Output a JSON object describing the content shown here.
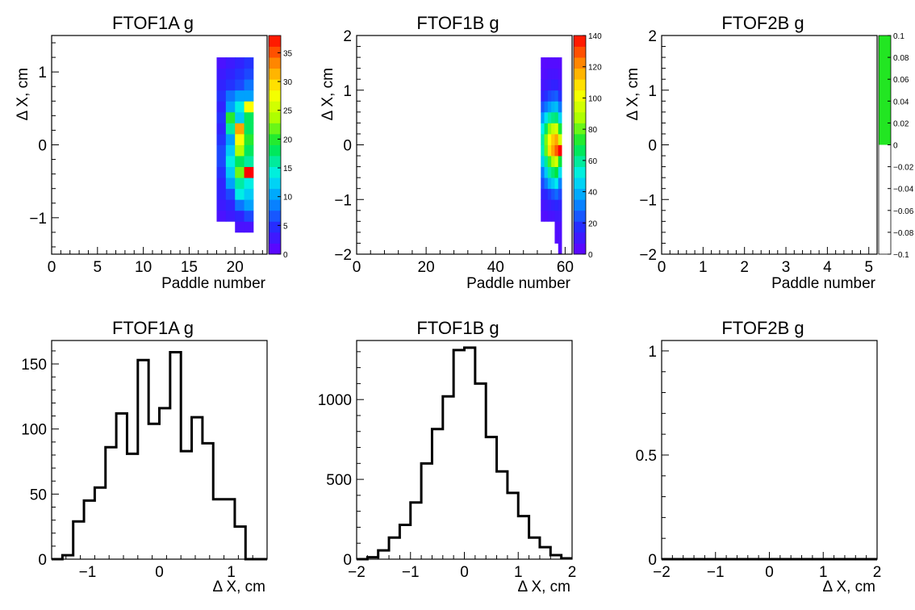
{
  "chart_data": [
    {
      "id": "p1",
      "type": "heatmap",
      "title": "FTOF1A g",
      "xlabel": "Paddle number",
      "ylabel": "Δ X, cm",
      "xlim": [
        0,
        23.5
      ],
      "ylim": [
        -1.5,
        1.5
      ],
      "xticks": [
        {
          "v": 0,
          "t": "0"
        },
        {
          "v": 5,
          "t": "5"
        },
        {
          "v": 10,
          "t": "10"
        },
        {
          "v": 15,
          "t": "15"
        },
        {
          "v": 20,
          "t": "20"
        }
      ],
      "yticks": [
        {
          "v": -1,
          "t": "−1"
        },
        {
          "v": 0,
          "t": "0"
        },
        {
          "v": 1,
          "t": "1"
        }
      ],
      "zlim": [
        0,
        38
      ],
      "zticks": [
        {
          "v": 0,
          "t": "0"
        },
        {
          "v": 5,
          "t": "5"
        },
        {
          "v": 10,
          "t": "10"
        },
        {
          "v": 15,
          "t": "15"
        },
        {
          "v": 20,
          "t": "20"
        },
        {
          "v": 25,
          "t": "25"
        },
        {
          "v": 30,
          "t": "30"
        },
        {
          "v": 35,
          "t": "35"
        }
      ],
      "cells": {
        "x_start": 18,
        "x_width": 1,
        "y_start": -1.2,
        "y_height": 0.15,
        "rows": [
          [
            null,
            null,
            2,
            2
          ],
          [
            2,
            3,
            4,
            6
          ],
          [
            3,
            4,
            8,
            10
          ],
          [
            4,
            6,
            14,
            12
          ],
          [
            4,
            10,
            16,
            14
          ],
          [
            5,
            12,
            22,
            38
          ],
          [
            6,
            14,
            18,
            16
          ],
          [
            6,
            12,
            24,
            18
          ],
          [
            5,
            10,
            28,
            20
          ],
          [
            4,
            16,
            32,
            18
          ],
          [
            5,
            20,
            12,
            18
          ],
          [
            4,
            10,
            14,
            28
          ],
          [
            5,
            8,
            10,
            10
          ],
          [
            4,
            5,
            6,
            8
          ],
          [
            3,
            4,
            5,
            6
          ],
          [
            2,
            3,
            4,
            5
          ]
        ]
      }
    },
    {
      "id": "p2",
      "type": "heatmap",
      "title": "FTOF1B g",
      "xlabel": "Paddle number",
      "ylabel": "Δ X, cm",
      "xlim": [
        0,
        62
      ],
      "ylim": [
        -2,
        2
      ],
      "xticks": [
        {
          "v": 0,
          "t": "0"
        },
        {
          "v": 20,
          "t": "20"
        },
        {
          "v": 40,
          "t": "40"
        },
        {
          "v": 60,
          "t": "60"
        }
      ],
      "yticks": [
        {
          "v": -2,
          "t": "−2"
        },
        {
          "v": -1,
          "t": "−1"
        },
        {
          "v": 0,
          "t": "0"
        },
        {
          "v": 1,
          "t": "1"
        },
        {
          "v": 2,
          "t": "2"
        }
      ],
      "zlim": [
        0,
        140
      ],
      "zticks": [
        {
          "v": 0,
          "t": "0"
        },
        {
          "v": 20,
          "t": "20"
        },
        {
          "v": 40,
          "t": "40"
        },
        {
          "v": 60,
          "t": "60"
        },
        {
          "v": 80,
          "t": "80"
        },
        {
          "v": 100,
          "t": "100"
        },
        {
          "v": 120,
          "t": "120"
        },
        {
          "v": 140,
          "t": "140"
        }
      ],
      "cells": {
        "x_start": 53,
        "x_width": 1,
        "y_start": -2,
        "y_height": 0.2,
        "rows": [
          [
            null,
            null,
            null,
            null,
            null,
            5
          ],
          [
            null,
            null,
            null,
            null,
            5,
            6
          ],
          [
            null,
            null,
            null,
            null,
            6,
            6
          ],
          [
            6,
            6,
            8,
            8,
            10,
            10
          ],
          [
            8,
            10,
            12,
            14,
            16,
            14
          ],
          [
            14,
            16,
            20,
            24,
            28,
            22
          ],
          [
            22,
            30,
            40,
            44,
            50,
            32
          ],
          [
            30,
            44,
            58,
            64,
            70,
            48
          ],
          [
            44,
            60,
            76,
            88,
            96,
            70
          ],
          [
            56,
            80,
            108,
            118,
            128,
            140
          ],
          [
            58,
            82,
            104,
            112,
            118,
            96
          ],
          [
            50,
            66,
            84,
            92,
            96,
            72
          ],
          [
            36,
            48,
            58,
            62,
            64,
            46
          ],
          [
            24,
            30,
            36,
            40,
            42,
            30
          ],
          [
            14,
            18,
            22,
            24,
            26,
            18
          ],
          [
            8,
            10,
            12,
            14,
            14,
            10
          ],
          [
            5,
            6,
            8,
            8,
            8,
            6
          ],
          [
            4,
            4,
            5,
            5,
            5,
            4
          ]
        ]
      }
    },
    {
      "id": "p3",
      "type": "heatmap",
      "title": "FTOF2B g",
      "xlabel": "Paddle number",
      "ylabel": "Δ X, cm",
      "xlim": [
        0,
        5.2
      ],
      "ylim": [
        -2,
        2
      ],
      "xticks": [
        {
          "v": 0,
          "t": "0"
        },
        {
          "v": 1,
          "t": "1"
        },
        {
          "v": 2,
          "t": "2"
        },
        {
          "v": 3,
          "t": "3"
        },
        {
          "v": 4,
          "t": "4"
        },
        {
          "v": 5,
          "t": "5"
        }
      ],
      "yticks": [
        {
          "v": -2,
          "t": "−2"
        },
        {
          "v": -1,
          "t": "−1"
        },
        {
          "v": 0,
          "t": "0"
        },
        {
          "v": 1,
          "t": "1"
        },
        {
          "v": 2,
          "t": "2"
        }
      ],
      "zlim": [
        -0.1,
        0.1
      ],
      "zticks": [
        {
          "v": -0.1,
          "t": "−0.1"
        },
        {
          "v": -0.08,
          "t": "−0.08"
        },
        {
          "v": -0.06,
          "t": "−0.06"
        },
        {
          "v": -0.04,
          "t": "−0.04"
        },
        {
          "v": -0.02,
          "t": "−0.02"
        },
        {
          "v": 0,
          "t": "0"
        },
        {
          "v": 0.02,
          "t": "0.02"
        },
        {
          "v": 0.04,
          "t": "0.04"
        },
        {
          "v": 0.06,
          "t": "0.06"
        },
        {
          "v": 0.08,
          "t": "0.08"
        },
        {
          "v": 0.1,
          "t": "0.1"
        }
      ],
      "zpalette_note": "empty",
      "cells": null
    },
    {
      "id": "p4",
      "type": "histogram",
      "title": "FTOF1A g",
      "xlabel": "Δ X, cm",
      "ylabel": "",
      "xlim": [
        -1.5,
        1.5
      ],
      "ylim": [
        0,
        168
      ],
      "xticks": [
        {
          "v": -1,
          "t": "−1"
        },
        {
          "v": 0,
          "t": "0"
        },
        {
          "v": 1,
          "t": "1"
        }
      ],
      "yticks": [
        {
          "v": 0,
          "t": "0"
        },
        {
          "v": 50,
          "t": "50"
        },
        {
          "v": 100,
          "t": "100"
        },
        {
          "v": 150,
          "t": "150"
        }
      ],
      "bin_edges": [
        -1.5,
        -1.35,
        -1.2,
        -1.05,
        -0.9,
        -0.75,
        -0.6,
        -0.45,
        -0.3,
        -0.15,
        0,
        0.15,
        0.3,
        0.45,
        0.6,
        0.75,
        0.9,
        1.05,
        1.2,
        1.35,
        1.5
      ],
      "counts": [
        0,
        3,
        29,
        45,
        55,
        86,
        112,
        81,
        153,
        104,
        116,
        159,
        83,
        109,
        89,
        46,
        46,
        25,
        0,
        0
      ]
    },
    {
      "id": "p5",
      "type": "histogram",
      "title": "FTOF1B g",
      "xlabel": "Δ X, cm",
      "ylabel": "",
      "xlim": [
        -2,
        2
      ],
      "ylim": [
        0,
        1370
      ],
      "xticks": [
        {
          "v": -2,
          "t": "−2"
        },
        {
          "v": -1,
          "t": "−1"
        },
        {
          "v": 0,
          "t": "0"
        },
        {
          "v": 1,
          "t": "1"
        },
        {
          "v": 2,
          "t": "2"
        }
      ],
      "yticks": [
        {
          "v": 0,
          "t": "0"
        },
        {
          "v": 500,
          "t": "500"
        },
        {
          "v": 1000,
          "t": "1000"
        }
      ],
      "bin_edges": [
        -2,
        -1.8,
        -1.6,
        -1.4,
        -1.2,
        -1,
        -0.8,
        -0.6,
        -0.4,
        -0.2,
        0,
        0.2,
        0.4,
        0.6,
        0.8,
        1,
        1.2,
        1.4,
        1.6,
        1.8,
        2
      ],
      "counts": [
        0,
        12,
        55,
        135,
        215,
        355,
        600,
        815,
        1020,
        1310,
        1325,
        1100,
        765,
        550,
        415,
        270,
        135,
        75,
        25,
        5
      ]
    },
    {
      "id": "p6",
      "type": "histogram",
      "title": "FTOF2B g",
      "xlabel": "Δ X, cm",
      "ylabel": "",
      "xlim": [
        -2,
        2
      ],
      "ylim": [
        0,
        1.05
      ],
      "xticks": [
        {
          "v": -2,
          "t": "−2"
        },
        {
          "v": -1,
          "t": "−1"
        },
        {
          "v": 0,
          "t": "0"
        },
        {
          "v": 1,
          "t": "1"
        },
        {
          "v": 2,
          "t": "2"
        }
      ],
      "yticks": [
        {
          "v": 0,
          "t": "0"
        },
        {
          "v": 0.5,
          "t": "0.5"
        },
        {
          "v": 1,
          "t": "1"
        }
      ],
      "bin_edges": [
        -2,
        2
      ],
      "counts": [
        0
      ]
    }
  ]
}
